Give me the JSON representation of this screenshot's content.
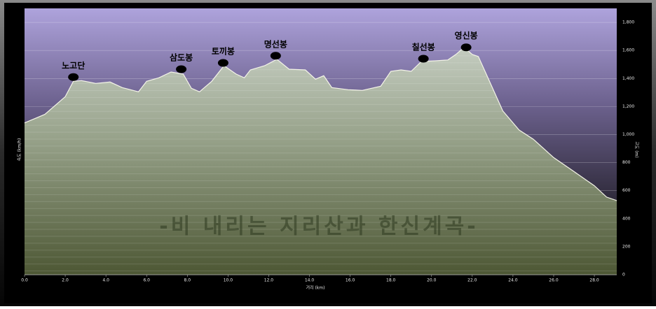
{
  "chart_data": {
    "type": "area",
    "title": "-비 내리는 지리산과 한신계곡-",
    "x_label": "거리 (km)",
    "y_label": "고도 (m)",
    "y_label_left": "속도 (km/h)",
    "x": [
      0.0,
      1.0,
      2.0,
      2.4,
      2.8,
      3.5,
      4.2,
      4.8,
      5.6,
      6.0,
      6.6,
      7.2,
      7.8,
      8.2,
      8.6,
      9.2,
      9.8,
      10.4,
      10.8,
      11.1,
      11.8,
      12.4,
      13.0,
      13.8,
      14.3,
      14.7,
      15.1,
      15.9,
      16.6,
      17.5,
      18.0,
      18.5,
      19.0,
      19.5,
      20.2,
      20.8,
      21.2,
      21.6,
      22.0,
      22.3,
      22.8,
      23.5,
      24.3,
      25.0,
      26.0,
      27.0,
      28.0,
      28.6,
      29.1
    ],
    "series": [
      {
        "name": "고도",
        "color": "#f4f4e8",
        "values": [
          1083,
          1144,
          1270,
          1380,
          1385,
          1365,
          1375,
          1335,
          1305,
          1380,
          1405,
          1446,
          1431,
          1330,
          1305,
          1380,
          1491,
          1431,
          1405,
          1461,
          1491,
          1537,
          1466,
          1461,
          1395,
          1420,
          1335,
          1320,
          1315,
          1345,
          1451,
          1461,
          1451,
          1521,
          1526,
          1532,
          1572,
          1622,
          1572,
          1557,
          1395,
          1169,
          1033,
          967,
          836,
          736,
          635,
          554,
          529
        ]
      }
    ],
    "peaks": [
      {
        "label": "노고단",
        "x": 2.4,
        "elevation": 1410
      },
      {
        "label": "삼도봉",
        "x": 7.7,
        "elevation": 1466
      },
      {
        "label": "토끼봉",
        "x": 9.76,
        "elevation": 1511
      },
      {
        "label": "명선봉",
        "x": 12.34,
        "elevation": 1562
      },
      {
        "label": "칠선봉",
        "x": 19.6,
        "elevation": 1541
      },
      {
        "label": "영신봉",
        "x": 21.7,
        "elevation": 1622
      }
    ],
    "xlim": [
      0,
      29.1
    ],
    "ylim": [
      0,
      1900
    ],
    "xticks": [
      {
        "value": 0,
        "label": "0.0"
      },
      {
        "value": 2,
        "label": "2.0"
      },
      {
        "value": 4,
        "label": "4.0"
      },
      {
        "value": 6,
        "label": "6.0"
      },
      {
        "value": 8,
        "label": "8.0"
      },
      {
        "value": 10,
        "label": "10.0"
      },
      {
        "value": 12,
        "label": "12.0"
      },
      {
        "value": 14,
        "label": "14.0"
      },
      {
        "value": 16,
        "label": "16.0"
      },
      {
        "value": 18,
        "label": "18.0"
      },
      {
        "value": 20,
        "label": "20.0"
      },
      {
        "value": 22,
        "label": "22.0"
      },
      {
        "value": 24,
        "label": "24.0"
      },
      {
        "value": 26,
        "label": "26.0"
      },
      {
        "value": 28,
        "label": "28.0"
      }
    ],
    "yticks": [
      0,
      200,
      400,
      600,
      800,
      {
        "value": 1000,
        "label": "1,000"
      },
      {
        "value": 1200,
        "label": "1,200"
      },
      {
        "value": 1400,
        "label": "1,400"
      },
      {
        "value": 1600,
        "label": "1,600"
      },
      {
        "value": 1800,
        "label": "1,800"
      }
    ],
    "grid": true
  }
}
